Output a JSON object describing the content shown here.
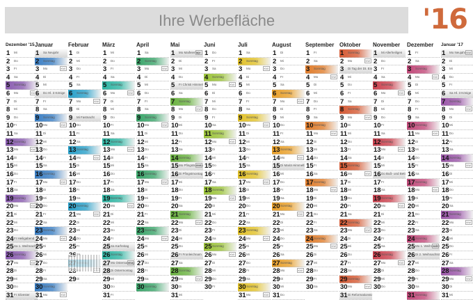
{
  "banner": {
    "text": "Ihre Werbefläche"
  },
  "year": {
    "label": "'16"
  },
  "months": [
    {
      "name": "Dezember '15",
      "days": 31,
      "start": 2,
      "color": "#8a5cb0",
      "holidays": {
        "24": "Heiligabend",
        "25": "1. Weihnachtstag",
        "26": "2. Weihnachtstag",
        "31": "Silvester"
      }
    },
    {
      "name": "Januar",
      "days": 31,
      "start": 5,
      "color": "#3b7fc4",
      "holidays": {
        "1": "Neujahr",
        "6": "Hl. 3 Könige"
      }
    },
    {
      "name": "Februar",
      "days": 29,
      "start": 1,
      "color": "#2aa0c9",
      "holidays": {
        "9": "Fastnacht"
      }
    },
    {
      "name": "März",
      "days": 31,
      "start": 2,
      "color": "#2fb5a3",
      "holidays": {
        "25": "Karfreitag",
        "27": "Ostersonntag",
        "28": "Ostermontag"
      }
    },
    {
      "name": "April",
      "days": 30,
      "start": 5,
      "color": "#3aa56a",
      "holidays": {}
    },
    {
      "name": "Mai",
      "days": 31,
      "start": 0,
      "color": "#6ab240",
      "holidays": {
        "1": "Maifeiertag",
        "5": "Christi Himmelfahrt",
        "15": "Pfingstsonntag",
        "16": "Pfingstmontag",
        "26": "Fronleichnam"
      }
    },
    {
      "name": "Juni",
      "days": 30,
      "start": 3,
      "color": "#9cc43a",
      "holidays": {}
    },
    {
      "name": "Juli",
      "days": 31,
      "start": 5,
      "color": "#e2c22a",
      "holidays": {}
    },
    {
      "name": "August",
      "days": 31,
      "start": 1,
      "color": "#e9a02a",
      "holidays": {
        "15": "Mariä Himmelfahrt"
      }
    },
    {
      "name": "September",
      "days": 30,
      "start": 4,
      "color": "#e07d2c",
      "holidays": {}
    },
    {
      "name": "Oktober",
      "days": 31,
      "start": 6,
      "color": "#d55a34",
      "holidays": {
        "3": "Tag der Dt. Einheit",
        "31": "Reformationstag"
      }
    },
    {
      "name": "November",
      "days": 30,
      "start": 2,
      "color": "#cc4350",
      "holidays": {
        "1": "Allerheiligen",
        "16": "Buß- und Bettag"
      }
    },
    {
      "name": "Dezember",
      "days": 31,
      "start": 4,
      "color": "#c24a7a",
      "holidays": {
        "24": "Heiligabend",
        "25": "1. Weihnachtstag",
        "26": "2. Weihnachtstag",
        "31": "Silvester"
      }
    },
    {
      "name": "Januar '17",
      "days": 31,
      "start": 0,
      "color": "#9a56a8",
      "holidays": {
        "1": "Neujahr",
        "6": "Hl. 3 Könige"
      }
    }
  ],
  "weekdays": [
    "Mo",
    "Di",
    "Mi",
    "Do",
    "Fr",
    "Sa",
    "So"
  ],
  "sunday_label": "Sonntag"
}
